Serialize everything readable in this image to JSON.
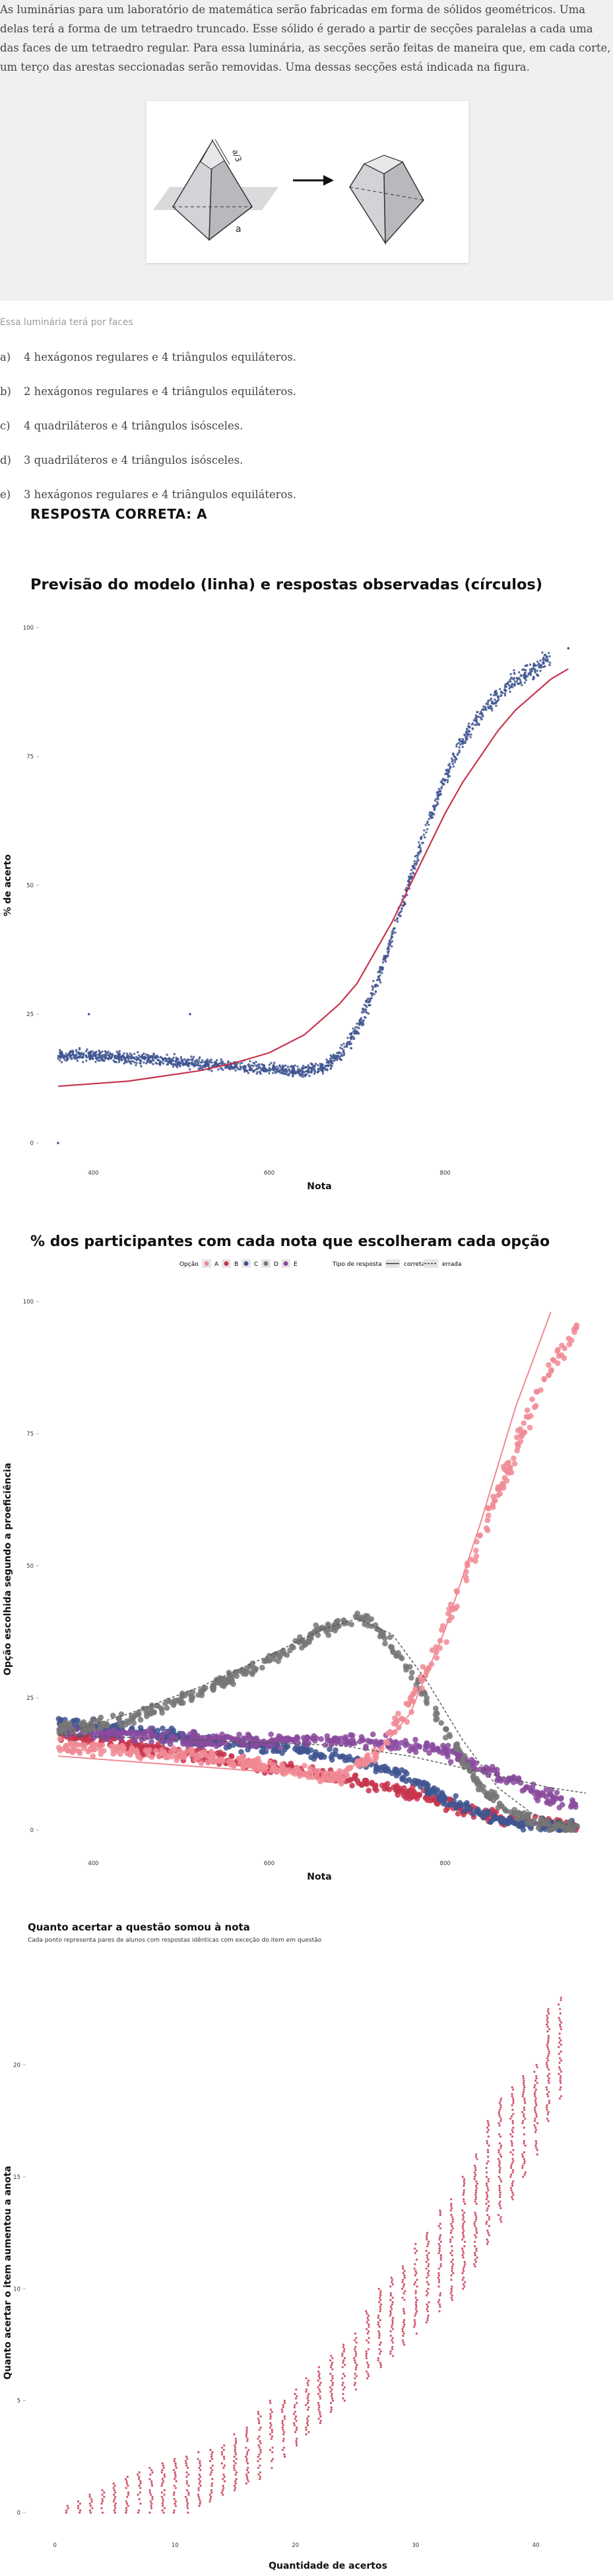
{
  "question": {
    "text": "As luminárias para um laboratório de matemática serão fabricadas em forma de sólidos geométricos. Uma delas terá a forma de um tetraedro truncado. Esse sólido é gerado a partir de secções paralelas a cada uma das faces de um tetraedro regular. Para essa luminária, as secções serão feitas de maneira que, em cada corte, um terço das arestas seccionadas serão removidas. Uma dessas secções está indicada na figura.",
    "figure_labels": {
      "top_label": "a/3",
      "edge_label": "a"
    },
    "prompt": "Essa luminária terá por faces",
    "options": [
      {
        "letter": "a)",
        "text": "4 hexágonos regulares e 4 triângulos equiláteros."
      },
      {
        "letter": "b)",
        "text": "2 hexágonos regulares e 4 triângulos equiláteros."
      },
      {
        "letter": "c)",
        "text": "4 quadriláteros e 4 triângulos isósceles."
      },
      {
        "letter": "d)",
        "text": "3 quadriláteros e 4 triângulos isósceles."
      },
      {
        "letter": "e)",
        "text": "3 hexágonos regulares e 4 triângulos equiláteros."
      }
    ],
    "answer": "RESPOSTA CORRETA: A"
  },
  "chart_data": [
    {
      "type": "scatter",
      "title": "Previsão do modelo (linha) e respostas observadas (círculos)",
      "xlabel": "Nota",
      "ylabel": "% de acerto",
      "xticks": [
        "400",
        "600",
        "800"
      ],
      "yticks": [
        "0",
        "25",
        "50",
        "75",
        "100"
      ],
      "xlim": [
        360,
        960
      ],
      "ylim": [
        0,
        100
      ],
      "colors": {
        "points": "#3f5590",
        "model": "#c8344d"
      },
      "series": [
        {
          "name": "observado",
          "x": [
            360,
            400,
            440,
            480,
            520,
            560,
            600,
            620,
            640,
            660,
            680,
            700,
            720,
            740,
            760,
            780,
            800,
            820,
            840,
            860,
            880,
            900,
            920,
            940
          ],
          "y": [
            17,
            17,
            16.5,
            16,
            15.5,
            15,
            14.5,
            14,
            14,
            14.5,
            17,
            22,
            30,
            40,
            51,
            62,
            71,
            78,
            83,
            87,
            90,
            92,
            94,
            96
          ]
        },
        {
          "name": "modelo",
          "x": [
            360,
            400,
            440,
            480,
            520,
            560,
            600,
            640,
            680,
            700,
            720,
            740,
            760,
            780,
            800,
            820,
            840,
            860,
            880,
            900,
            920,
            940
          ],
          "y": [
            11,
            11.5,
            12,
            13,
            14,
            15.5,
            17.5,
            21,
            27,
            31,
            37,
            43,
            50,
            57,
            64,
            70,
            75,
            80,
            84,
            87,
            90,
            92
          ]
        }
      ],
      "outliers": [
        [
          360,
          0
        ],
        [
          395,
          25
        ],
        [
          510,
          25
        ],
        [
          900,
          90
        ],
        [
          940,
          96
        ]
      ]
    },
    {
      "type": "scatter",
      "title": "% dos participantes com cada nota que escolheram cada opção",
      "xlabel": "Nota",
      "ylabel": "Opção escolhida segundo a proeficiência",
      "xticks": [
        "400",
        "600",
        "800"
      ],
      "yticks": [
        "0",
        "25",
        "50",
        "75",
        "100"
      ],
      "xlim": [
        360,
        960
      ],
      "ylim": [
        0,
        100
      ],
      "legend": {
        "option_title": "Opção",
        "options": [
          "A",
          "B",
          "C",
          "D",
          "E"
        ],
        "type_title": "Tipo de resposta",
        "types": [
          "correta",
          "errada"
        ],
        "placement": "top"
      },
      "colors": {
        "A": "#f08a94",
        "B": "#c8344d",
        "C": "#3f5590",
        "D": "#777777",
        "E": "#8a4a9e"
      },
      "series": [
        {
          "name": "A",
          "x": [
            360,
            440,
            520,
            600,
            640,
            680,
            720,
            760,
            800,
            840,
            880,
            920,
            950
          ],
          "y": [
            16,
            15,
            14,
            12,
            11,
            10,
            14,
            24,
            38,
            55,
            72,
            88,
            95
          ]
        },
        {
          "name": "B",
          "x": [
            360,
            440,
            520,
            600,
            680,
            760,
            800,
            840,
            880,
            920,
            950
          ],
          "y": [
            18,
            16,
            14,
            12,
            10,
            7,
            5,
            3,
            2,
            1,
            0.5
          ]
        },
        {
          "name": "C",
          "x": [
            360,
            440,
            520,
            600,
            680,
            760,
            800,
            840,
            880,
            920,
            950
          ],
          "y": [
            20,
            19,
            17,
            16,
            14,
            10,
            6,
            3,
            1.5,
            1,
            0.5
          ]
        },
        {
          "name": "D",
          "x": [
            360,
            440,
            520,
            600,
            660,
            700,
            720,
            760,
            800,
            840,
            880,
            920,
            950
          ],
          "y": [
            19,
            21,
            26,
            32,
            38,
            40,
            39,
            30,
            19,
            8,
            3,
            1,
            0.5
          ]
        },
        {
          "name": "E",
          "x": [
            360,
            440,
            520,
            600,
            680,
            760,
            800,
            840,
            880,
            920,
            950
          ],
          "y": [
            19,
            18,
            17,
            17,
            17,
            16,
            15,
            12,
            9,
            6,
            5
          ]
        }
      ],
      "lines": [
        {
          "name": "A",
          "type": "correta",
          "x": [
            360,
            440,
            520,
            600,
            680,
            720,
            760,
            800,
            840,
            880,
            920
          ],
          "y": [
            14,
            13,
            12,
            11,
            11,
            14,
            22,
            38,
            58,
            80,
            98
          ]
        },
        {
          "name": "D",
          "type": "errada",
          "x": [
            360,
            440,
            520,
            600,
            660,
            700,
            740,
            780,
            820,
            860,
            900,
            940
          ],
          "y": [
            18,
            22,
            27,
            33,
            38,
            40,
            37,
            28,
            17,
            8,
            3,
            1
          ]
        },
        {
          "name": "E",
          "type": "errada",
          "x": [
            360,
            440,
            520,
            600,
            680,
            760,
            840,
            920,
            960
          ],
          "y": [
            18,
            17.5,
            17,
            16.5,
            16,
            14,
            11,
            8,
            7
          ]
        }
      ]
    },
    {
      "type": "scatter",
      "title": "Quanto acertar a questão somou à nota",
      "subtitle": "Cada ponto representa pares de alunos com respostas idênticas com exceção do item em questão",
      "xlabel": "Quantidade de acertos",
      "ylabel": "Quanto acertar o item aumentou a anota",
      "xticks": [
        "0",
        "10",
        "20",
        "30",
        "40"
      ],
      "yticks": [
        "0",
        "5",
        "10",
        "15",
        "20"
      ],
      "xlim": [
        -1,
        44
      ],
      "ylim": [
        -0.5,
        24
      ],
      "colors": {
        "points": "#c8344d"
      },
      "columns": [
        {
          "x": 1,
          "range": [
            0,
            0.3
          ]
        },
        {
          "x": 2,
          "range": [
            0,
            0.5
          ]
        },
        {
          "x": 3,
          "range": [
            0,
            0.8
          ]
        },
        {
          "x": 4,
          "range": [
            0,
            1
          ]
        },
        {
          "x": 5,
          "range": [
            0,
            1.3
          ]
        },
        {
          "x": 6,
          "range": [
            0,
            1.6
          ]
        },
        {
          "x": 7,
          "range": [
            0,
            1.8
          ]
        },
        {
          "x": 8,
          "range": [
            0,
            2
          ]
        },
        {
          "x": 9,
          "range": [
            0,
            2.2
          ]
        },
        {
          "x": 10,
          "range": [
            0,
            2.4
          ]
        },
        {
          "x": 11,
          "range": [
            0,
            2.5
          ]
        },
        {
          "x": 12,
          "range": [
            0.3,
            2.7
          ]
        },
        {
          "x": 13,
          "range": [
            0.5,
            2.8
          ]
        },
        {
          "x": 14,
          "range": [
            0.8,
            3
          ]
        },
        {
          "x": 15,
          "range": [
            1,
            3.5
          ]
        },
        {
          "x": 16,
          "range": [
            1.3,
            3.8
          ]
        },
        {
          "x": 17,
          "range": [
            1.5,
            4.5
          ]
        },
        {
          "x": 18,
          "range": [
            2,
            5
          ]
        },
        {
          "x": 19,
          "range": [
            2.5,
            5
          ]
        },
        {
          "x": 20,
          "range": [
            3,
            5.5
          ]
        },
        {
          "x": 21,
          "range": [
            3.5,
            6
          ]
        },
        {
          "x": 22,
          "range": [
            4,
            6.5
          ]
        },
        {
          "x": 23,
          "range": [
            4.5,
            7
          ]
        },
        {
          "x": 24,
          "range": [
            5,
            7.5
          ]
        },
        {
          "x": 25,
          "range": [
            5.5,
            8
          ]
        },
        {
          "x": 26,
          "range": [
            6,
            9
          ]
        },
        {
          "x": 27,
          "range": [
            6.5,
            10
          ]
        },
        {
          "x": 28,
          "range": [
            7,
            10.5
          ]
        },
        {
          "x": 29,
          "range": [
            7.5,
            11
          ]
        },
        {
          "x": 30,
          "range": [
            8,
            12
          ]
        },
        {
          "x": 31,
          "range": [
            8.5,
            12.5
          ]
        },
        {
          "x": 32,
          "range": [
            9,
            13.5
          ]
        },
        {
          "x": 33,
          "range": [
            9.5,
            14
          ]
        },
        {
          "x": 34,
          "range": [
            10,
            15
          ]
        },
        {
          "x": 35,
          "range": [
            11,
            16
          ]
        },
        {
          "x": 36,
          "range": [
            12,
            17.5
          ]
        },
        {
          "x": 37,
          "range": [
            13,
            18.5
          ]
        },
        {
          "x": 38,
          "range": [
            14,
            19
          ]
        },
        {
          "x": 39,
          "range": [
            15,
            19.5
          ]
        },
        {
          "x": 40,
          "range": [
            16,
            20
          ]
        },
        {
          "x": 41,
          "range": [
            17.5,
            22.5
          ]
        },
        {
          "x": 42,
          "range": [
            18.5,
            23
          ]
        }
      ]
    }
  ]
}
